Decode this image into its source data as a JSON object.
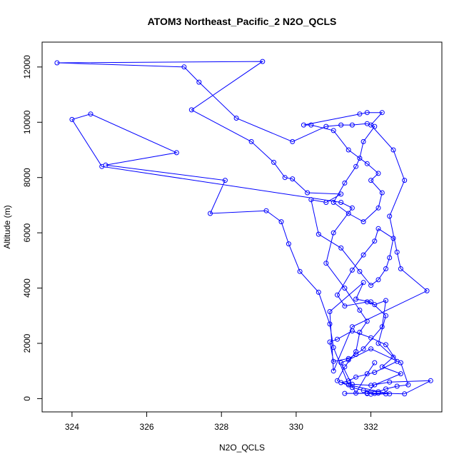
{
  "chart_data": {
    "type": "line",
    "title": "ATOM3 Northeast_Pacific_2 N2O_QCLS",
    "xlabel": "N2O_QCLS",
    "ylabel": "Altitude (m)",
    "xlim": [
      323.2,
      333.9
    ],
    "ylim": [
      -480,
      12900
    ],
    "x_ticks": [
      324,
      326,
      328,
      330,
      332
    ],
    "x_tick_labels": [
      "324",
      "326",
      "328",
      "330",
      "332"
    ],
    "y_ticks": [
      0,
      2000,
      4000,
      6000,
      8000,
      10000,
      12000
    ],
    "y_tick_labels": [
      "0",
      "2000",
      "4000",
      "6000",
      "8000",
      "10000",
      "12000"
    ],
    "series": [
      {
        "color": "#0000ff",
        "marker": "open-circle",
        "points": [
          [
            332.0,
            160
          ],
          [
            332.4,
            170
          ],
          [
            331.9,
            180
          ],
          [
            332.1,
            190
          ],
          [
            331.3,
            190
          ],
          [
            332.2,
            200
          ],
          [
            332.9,
            170
          ],
          [
            333.6,
            650
          ],
          [
            332.5,
            600
          ],
          [
            332.0,
            480
          ],
          [
            331.5,
            520
          ],
          [
            331.2,
            580
          ],
          [
            331.4,
            640
          ],
          [
            331.6,
            780
          ],
          [
            332.1,
            950
          ],
          [
            332.7,
            1350
          ],
          [
            332.4,
            1950
          ],
          [
            332.0,
            2200
          ],
          [
            331.5,
            2450
          ],
          [
            331.1,
            2150
          ],
          [
            330.9,
            2050
          ],
          [
            331.0,
            1350
          ],
          [
            331.4,
            1450
          ],
          [
            331.6,
            1600
          ],
          [
            331.8,
            1800
          ],
          [
            332.3,
            2600
          ],
          [
            332.4,
            3550
          ],
          [
            332.1,
            3400
          ],
          [
            331.9,
            3500
          ],
          [
            331.3,
            3350
          ],
          [
            331.1,
            3750
          ],
          [
            331.5,
            4650
          ],
          [
            331.8,
            5200
          ],
          [
            332.1,
            5700
          ],
          [
            332.2,
            6150
          ],
          [
            332.6,
            5800
          ],
          [
            332.5,
            5100
          ],
          [
            332.4,
            4700
          ],
          [
            332.2,
            4300
          ],
          [
            332.0,
            4100
          ],
          [
            331.7,
            4600
          ],
          [
            331.2,
            5450
          ],
          [
            330.6,
            5950
          ],
          [
            330.4,
            7200
          ],
          [
            330.8,
            7100
          ],
          [
            331.2,
            7400
          ],
          [
            330.3,
            7450
          ],
          [
            329.9,
            7950
          ],
          [
            329.7,
            8000
          ],
          [
            329.4,
            8550
          ],
          [
            328.8,
            9300
          ],
          [
            327.2,
            10450
          ],
          [
            329.1,
            12200
          ],
          [
            323.6,
            12150
          ],
          [
            327.0,
            12000
          ],
          [
            327.4,
            11450
          ],
          [
            328.4,
            10150
          ],
          [
            329.9,
            9300
          ],
          [
            330.8,
            9850
          ],
          [
            331.2,
            9900
          ],
          [
            331.5,
            9900
          ],
          [
            331.9,
            9950
          ],
          [
            332.1,
            9850
          ],
          [
            331.8,
            9300
          ],
          [
            331.7,
            8700
          ],
          [
            331.6,
            8400
          ],
          [
            331.3,
            7800
          ],
          [
            331.0,
            7100
          ],
          [
            331.4,
            6700
          ],
          [
            331.8,
            6400
          ],
          [
            332.2,
            6900
          ],
          [
            332.3,
            7450
          ],
          [
            332.0,
            7900
          ],
          [
            332.2,
            8150
          ],
          [
            331.9,
            8500
          ],
          [
            331.4,
            9000
          ],
          [
            331.0,
            9700
          ],
          [
            330.4,
            9900
          ],
          [
            330.2,
            9900
          ],
          [
            331.7,
            10300
          ],
          [
            331.9,
            10350
          ],
          [
            332.3,
            10350
          ],
          [
            332.0,
            9900
          ],
          [
            332.6,
            9000
          ],
          [
            332.9,
            7900
          ],
          [
            332.5,
            6600
          ],
          [
            332.7,
            5300
          ],
          [
            332.8,
            4700
          ],
          [
            333.5,
            3900
          ],
          [
            331.5,
            2600
          ],
          [
            331.0,
            1000
          ],
          [
            330.9,
            3150
          ],
          [
            331.8,
            4200
          ],
          [
            331.6,
            3600
          ],
          [
            332.0,
            3500
          ],
          [
            332.4,
            3000
          ],
          [
            332.2,
            2000
          ],
          [
            332.6,
            1500
          ],
          [
            332.3,
            1150
          ],
          [
            332.8,
            900
          ],
          [
            332.1,
            500
          ],
          [
            331.9,
            200
          ],
          [
            332.5,
            170
          ],
          [
            331.4,
            500
          ],
          [
            331.0,
            1850
          ],
          [
            330.9,
            2700
          ],
          [
            330.6,
            3850
          ],
          [
            330.1,
            4600
          ],
          [
            329.8,
            5600
          ],
          [
            329.6,
            6400
          ],
          [
            329.2,
            6800
          ],
          [
            327.7,
            6700
          ],
          [
            328.1,
            7900
          ],
          [
            324.9,
            8450
          ],
          [
            326.8,
            8900
          ],
          [
            324.5,
            10300
          ],
          [
            324.0,
            10100
          ],
          [
            324.8,
            8400
          ],
          [
            331.2,
            7100
          ],
          [
            331.5,
            6900
          ],
          [
            331.0,
            6000
          ],
          [
            330.8,
            4900
          ],
          [
            331.3,
            4000
          ],
          [
            331.7,
            3200
          ],
          [
            331.9,
            2800
          ],
          [
            331.7,
            2400
          ],
          [
            331.6,
            1700
          ],
          [
            331.3,
            1150
          ],
          [
            331.1,
            650
          ],
          [
            331.5,
            400
          ],
          [
            331.8,
            300
          ],
          [
            332.2,
            250
          ],
          [
            332.4,
            350
          ],
          [
            332.7,
            450
          ],
          [
            333.0,
            500
          ],
          [
            332.8,
            1300
          ],
          [
            332.0,
            1800
          ],
          [
            331.4,
            1400
          ],
          [
            331.2,
            1300
          ],
          [
            331.6,
            200
          ],
          [
            331.9,
            900
          ],
          [
            332.1,
            1300
          ]
        ]
      }
    ]
  }
}
